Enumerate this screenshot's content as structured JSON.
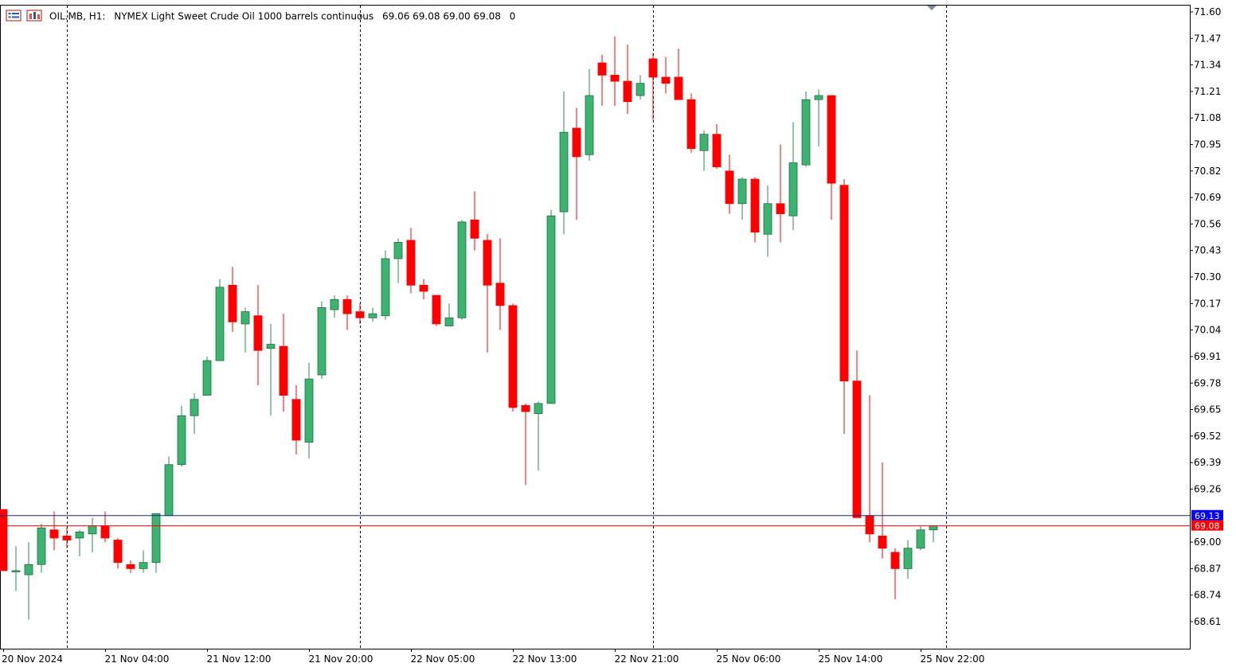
{
  "header": {
    "symbol": "OIL.MB, H1:",
    "description": "NYMEX Light Sweet Crude Oil 1000 barrels continuous",
    "ohlc": "69.06 69.08 69.00 69.08",
    "spread": "0"
  },
  "colors": {
    "bull": "#3cb371",
    "bear": "#ff0000",
    "ask_line": "#1a237e",
    "bid_line": "#ff0000",
    "ask_badge": "#0000ff",
    "bid_badge": "#ff0000",
    "grid_separator": "#000000"
  },
  "chart_data": {
    "type": "candlestick",
    "timeframe": "H1",
    "ylim": [
      68.55,
      71.62
    ],
    "y_ticks": [
      "71.60",
      "71.47",
      "71.34",
      "71.21",
      "71.08",
      "70.95",
      "70.82",
      "70.69",
      "70.56",
      "70.43",
      "70.30",
      "70.17",
      "70.04",
      "69.91",
      "69.78",
      "69.65",
      "69.52",
      "69.39",
      "69.26",
      "69.00",
      "68.87",
      "68.74",
      "68.61"
    ],
    "x_ticks": [
      "20 Nov 2024",
      "21 Nov 04:00",
      "21 Nov 12:00",
      "21 Nov 20:00",
      "22 Nov 05:00",
      "22 Nov 13:00",
      "22 Nov 21:00",
      "25 Nov 06:00",
      "25 Nov 14:00",
      "25 Nov 22:00"
    ],
    "day_separators": [
      5,
      28,
      51,
      74
    ],
    "ask_price": 69.13,
    "bid_price": 69.08,
    "ask_label": "69.13",
    "bid_label": "69.08",
    "candles": [
      {
        "o": 69.16,
        "h": 69.16,
        "l": 68.86,
        "c": 68.86
      },
      {
        "o": 68.86,
        "h": 68.98,
        "l": 68.76,
        "c": 68.86
      },
      {
        "o": 68.84,
        "h": 69.0,
        "l": 68.62,
        "c": 68.89
      },
      {
        "o": 68.89,
        "h": 69.09,
        "l": 68.85,
        "c": 69.07
      },
      {
        "o": 69.06,
        "h": 69.15,
        "l": 68.96,
        "c": 69.02
      },
      {
        "o": 69.03,
        "h": 69.07,
        "l": 68.97,
        "c": 69.01
      },
      {
        "o": 69.02,
        "h": 69.06,
        "l": 68.93,
        "c": 69.05
      },
      {
        "o": 69.04,
        "h": 69.12,
        "l": 68.95,
        "c": 69.08
      },
      {
        "o": 69.08,
        "h": 69.15,
        "l": 69.0,
        "c": 69.02
      },
      {
        "o": 69.01,
        "h": 69.02,
        "l": 68.87,
        "c": 68.9
      },
      {
        "o": 68.89,
        "h": 68.91,
        "l": 68.85,
        "c": 68.87
      },
      {
        "o": 68.87,
        "h": 68.96,
        "l": 68.85,
        "c": 68.9
      },
      {
        "o": 68.9,
        "h": 69.14,
        "l": 68.85,
        "c": 69.14
      },
      {
        "o": 69.13,
        "h": 69.42,
        "l": 69.13,
        "c": 69.38
      },
      {
        "o": 69.38,
        "h": 69.67,
        "l": 69.37,
        "c": 69.62
      },
      {
        "o": 69.62,
        "h": 69.73,
        "l": 69.53,
        "c": 69.7
      },
      {
        "o": 69.72,
        "h": 69.91,
        "l": 69.72,
        "c": 69.89
      },
      {
        "o": 69.89,
        "h": 70.29,
        "l": 69.89,
        "c": 70.25
      },
      {
        "o": 70.26,
        "h": 70.35,
        "l": 70.03,
        "c": 70.08
      },
      {
        "o": 70.07,
        "h": 70.15,
        "l": 69.93,
        "c": 70.13
      },
      {
        "o": 70.11,
        "h": 70.26,
        "l": 69.77,
        "c": 69.94
      },
      {
        "o": 69.95,
        "h": 70.07,
        "l": 69.62,
        "c": 69.97
      },
      {
        "o": 69.96,
        "h": 70.12,
        "l": 69.64,
        "c": 69.72
      },
      {
        "o": 69.7,
        "h": 69.77,
        "l": 69.43,
        "c": 69.5
      },
      {
        "o": 69.49,
        "h": 69.88,
        "l": 69.41,
        "c": 69.8
      },
      {
        "o": 69.82,
        "h": 70.18,
        "l": 69.8,
        "c": 70.15
      },
      {
        "o": 70.14,
        "h": 70.21,
        "l": 70.1,
        "c": 70.19
      },
      {
        "o": 70.19,
        "h": 70.21,
        "l": 70.04,
        "c": 70.12
      },
      {
        "o": 70.13,
        "h": 70.17,
        "l": 70.07,
        "c": 70.1
      },
      {
        "o": 70.1,
        "h": 70.15,
        "l": 70.08,
        "c": 70.12
      },
      {
        "o": 70.11,
        "h": 70.43,
        "l": 70.09,
        "c": 70.39
      },
      {
        "o": 70.39,
        "h": 70.49,
        "l": 70.27,
        "c": 70.47
      },
      {
        "o": 70.48,
        "h": 70.54,
        "l": 70.22,
        "c": 70.26
      },
      {
        "o": 70.26,
        "h": 70.29,
        "l": 70.19,
        "c": 70.23
      },
      {
        "o": 70.21,
        "h": 70.21,
        "l": 70.06,
        "c": 70.07
      },
      {
        "o": 70.06,
        "h": 70.17,
        "l": 70.06,
        "c": 70.1
      },
      {
        "o": 70.1,
        "h": 70.58,
        "l": 70.09,
        "c": 70.57
      },
      {
        "o": 70.58,
        "h": 70.72,
        "l": 70.43,
        "c": 70.49
      },
      {
        "o": 70.48,
        "h": 70.51,
        "l": 69.93,
        "c": 70.26
      },
      {
        "o": 70.27,
        "h": 70.49,
        "l": 70.04,
        "c": 70.16
      },
      {
        "o": 70.16,
        "h": 70.17,
        "l": 69.64,
        "c": 69.66
      },
      {
        "o": 69.67,
        "h": 69.68,
        "l": 69.28,
        "c": 69.64
      },
      {
        "o": 69.63,
        "h": 69.69,
        "l": 69.35,
        "c": 69.68
      },
      {
        "o": 69.68,
        "h": 70.63,
        "l": 69.68,
        "c": 70.6
      },
      {
        "o": 70.62,
        "h": 71.21,
        "l": 70.51,
        "c": 71.01
      },
      {
        "o": 71.03,
        "h": 71.13,
        "l": 70.58,
        "c": 70.89
      },
      {
        "o": 70.9,
        "h": 71.32,
        "l": 70.87,
        "c": 71.19
      },
      {
        "o": 71.35,
        "h": 71.39,
        "l": 71.14,
        "c": 71.29
      },
      {
        "o": 71.29,
        "h": 71.48,
        "l": 71.14,
        "c": 71.26
      },
      {
        "o": 71.26,
        "h": 71.44,
        "l": 71.1,
        "c": 71.16
      },
      {
        "o": 71.19,
        "h": 71.29,
        "l": 71.17,
        "c": 71.25
      },
      {
        "o": 71.37,
        "h": 71.4,
        "l": 71.07,
        "c": 71.28
      },
      {
        "o": 71.28,
        "h": 71.38,
        "l": 71.2,
        "c": 71.25
      },
      {
        "o": 71.28,
        "h": 71.42,
        "l": 71.18,
        "c": 71.17
      },
      {
        "o": 71.17,
        "h": 71.2,
        "l": 70.91,
        "c": 70.93
      },
      {
        "o": 70.92,
        "h": 71.02,
        "l": 70.82,
        "c": 71.0
      },
      {
        "o": 71.0,
        "h": 71.05,
        "l": 70.83,
        "c": 70.84
      },
      {
        "o": 70.82,
        "h": 70.9,
        "l": 70.61,
        "c": 70.66
      },
      {
        "o": 70.66,
        "h": 70.79,
        "l": 70.58,
        "c": 70.78
      },
      {
        "o": 70.78,
        "h": 70.79,
        "l": 70.47,
        "c": 70.52
      },
      {
        "o": 70.51,
        "h": 70.75,
        "l": 70.4,
        "c": 70.66
      },
      {
        "o": 70.66,
        "h": 70.95,
        "l": 70.47,
        "c": 70.61
      },
      {
        "o": 70.6,
        "h": 71.06,
        "l": 70.53,
        "c": 70.86
      },
      {
        "o": 70.85,
        "h": 71.21,
        "l": 70.84,
        "c": 71.17
      },
      {
        "o": 71.17,
        "h": 71.22,
        "l": 70.94,
        "c": 71.19
      },
      {
        "o": 71.19,
        "h": 71.19,
        "l": 70.58,
        "c": 70.76
      },
      {
        "o": 70.75,
        "h": 70.78,
        "l": 69.53,
        "c": 69.79
      },
      {
        "o": 69.79,
        "h": 69.94,
        "l": 69.13,
        "c": 69.12
      },
      {
        "o": 69.13,
        "h": 69.72,
        "l": 69.0,
        "c": 69.04
      },
      {
        "o": 69.03,
        "h": 69.39,
        "l": 68.92,
        "c": 68.97
      },
      {
        "o": 68.95,
        "h": 68.97,
        "l": 68.72,
        "c": 68.87
      },
      {
        "o": 68.87,
        "h": 69.01,
        "l": 68.82,
        "c": 68.97
      },
      {
        "o": 68.97,
        "h": 69.08,
        "l": 68.96,
        "c": 69.06
      },
      {
        "o": 69.06,
        "h": 69.08,
        "l": 69.0,
        "c": 69.08
      }
    ]
  }
}
